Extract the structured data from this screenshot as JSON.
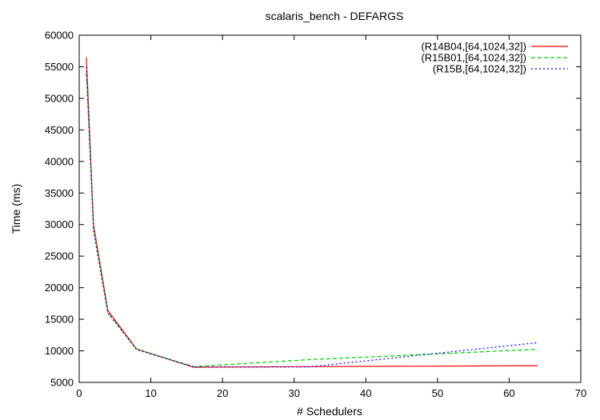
{
  "chart_data": {
    "type": "line",
    "title": "scalaris_bench - DEFARGS",
    "xlabel": "# Schedulers",
    "ylabel": "Time (ms)",
    "xlim": [
      0,
      70
    ],
    "ylim": [
      5000,
      60000
    ],
    "xticks": [
      0,
      10,
      20,
      30,
      40,
      50,
      60,
      70
    ],
    "yticks": [
      5000,
      10000,
      15000,
      20000,
      25000,
      30000,
      35000,
      40000,
      45000,
      50000,
      55000,
      60000
    ],
    "grid": false,
    "legend_position": "top-right",
    "series": [
      {
        "name": "(R14B04,[64,1024,32])",
        "color": "#ff0000",
        "dash": "solid",
        "x": [
          1,
          2,
          4,
          8,
          16,
          32,
          64
        ],
        "y": [
          56500,
          30000,
          16400,
          10300,
          7400,
          7500,
          7650
        ]
      },
      {
        "name": "(R15B01,[64,1024,32])",
        "color": "#00cc00",
        "dash": "dashed",
        "x": [
          1,
          2,
          4,
          8,
          16,
          32,
          64
        ],
        "y": [
          54000,
          29500,
          16100,
          10250,
          7500,
          8600,
          10250
        ]
      },
      {
        "name": "(R15B,[64,1024,32])",
        "color": "#0000ff",
        "dash": "dotted",
        "x": [
          1,
          2,
          4,
          8,
          16,
          32,
          64
        ],
        "y": [
          55000,
          29000,
          16000,
          10200,
          7450,
          7450,
          11300
        ]
      }
    ]
  }
}
